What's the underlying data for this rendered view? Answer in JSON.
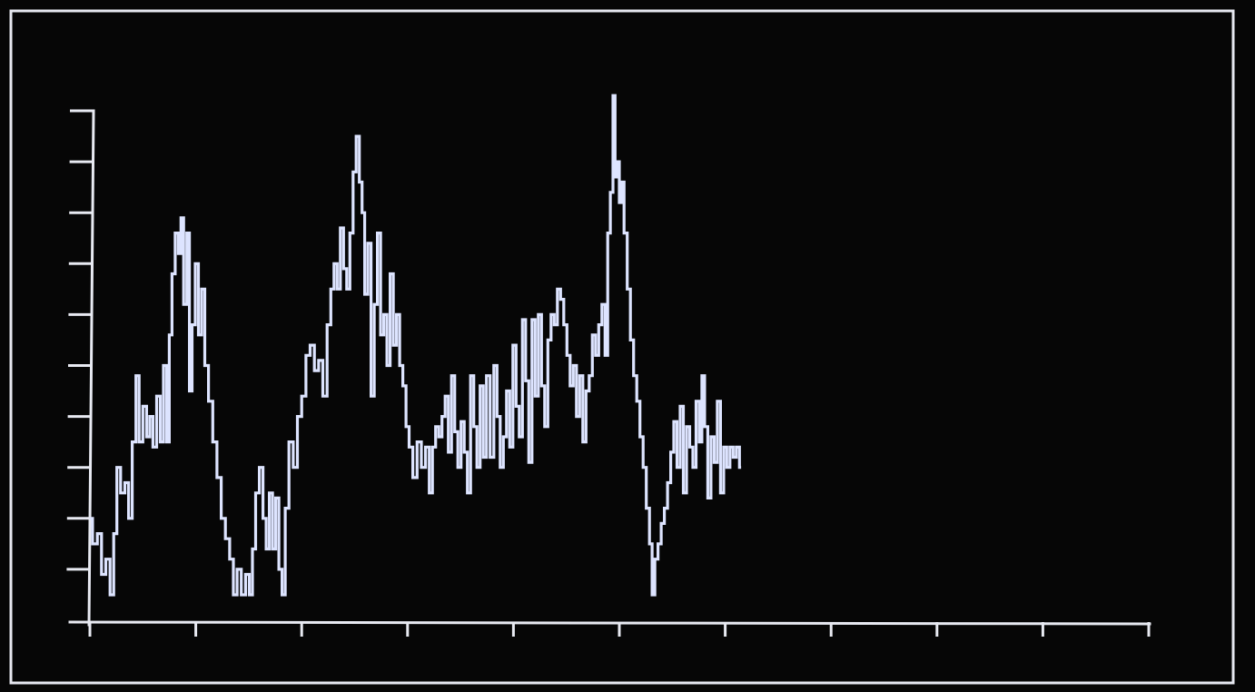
{
  "colors": {
    "background": "#060606",
    "frame": "#e6e8f0",
    "axis": "#e8eaf2",
    "trace": "#dde4ff"
  },
  "chart_data": {
    "type": "line",
    "title": "",
    "xlabel": "",
    "ylabel": "",
    "xlim": [
      0,
      10
    ],
    "ylim": [
      0,
      10
    ],
    "x_ticks": 10,
    "y_ticks": 10,
    "grid": false,
    "legend": "none",
    "series": [
      {
        "values": [
          [
            0.0,
            2.0
          ],
          [
            0.05,
            1.5
          ],
          [
            0.09,
            1.7
          ],
          [
            0.13,
            0.9
          ],
          [
            0.17,
            1.2
          ],
          [
            0.21,
            0.5
          ],
          [
            0.24,
            1.7
          ],
          [
            0.27,
            3.0
          ],
          [
            0.31,
            2.5
          ],
          [
            0.35,
            2.7
          ],
          [
            0.38,
            2.0
          ],
          [
            0.42,
            3.5
          ],
          [
            0.45,
            4.8
          ],
          [
            0.48,
            3.5
          ],
          [
            0.52,
            4.2
          ],
          [
            0.55,
            3.6
          ],
          [
            0.58,
            4.0
          ],
          [
            0.61,
            3.4
          ],
          [
            0.65,
            4.4
          ],
          [
            0.68,
            3.5
          ],
          [
            0.71,
            5.0
          ],
          [
            0.74,
            3.5
          ],
          [
            0.76,
            5.6
          ],
          [
            0.79,
            6.8
          ],
          [
            0.82,
            7.6
          ],
          [
            0.85,
            7.2
          ],
          [
            0.87,
            7.9
          ],
          [
            0.9,
            6.2
          ],
          [
            0.93,
            7.6
          ],
          [
            0.95,
            4.5
          ],
          [
            0.98,
            5.8
          ],
          [
            1.01,
            7.0
          ],
          [
            1.04,
            5.6
          ],
          [
            1.07,
            6.5
          ],
          [
            1.1,
            5.0
          ],
          [
            1.14,
            4.3
          ],
          [
            1.18,
            3.5
          ],
          [
            1.22,
            2.8
          ],
          [
            1.26,
            2.0
          ],
          [
            1.3,
            1.6
          ],
          [
            1.34,
            1.2
          ],
          [
            1.37,
            0.5
          ],
          [
            1.41,
            1.0
          ],
          [
            1.45,
            0.5
          ],
          [
            1.49,
            0.9
          ],
          [
            1.52,
            0.5
          ],
          [
            1.55,
            1.4
          ],
          [
            1.58,
            2.5
          ],
          [
            1.62,
            3.0
          ],
          [
            1.65,
            2.0
          ],
          [
            1.68,
            1.4
          ],
          [
            1.71,
            2.5
          ],
          [
            1.74,
            1.4
          ],
          [
            1.77,
            2.4
          ],
          [
            1.8,
            1.0
          ],
          [
            1.83,
            0.5
          ],
          [
            1.86,
            2.2
          ],
          [
            1.9,
            3.5
          ],
          [
            1.94,
            3.0
          ],
          [
            1.98,
            4.0
          ],
          [
            2.02,
            4.4
          ],
          [
            2.06,
            5.2
          ],
          [
            2.1,
            5.4
          ],
          [
            2.14,
            4.9
          ],
          [
            2.18,
            5.1
          ],
          [
            2.22,
            4.4
          ],
          [
            2.26,
            5.8
          ],
          [
            2.29,
            6.5
          ],
          [
            2.32,
            7.0
          ],
          [
            2.35,
            6.5
          ],
          [
            2.38,
            7.7
          ],
          [
            2.41,
            6.9
          ],
          [
            2.44,
            6.5
          ],
          [
            2.47,
            7.6
          ],
          [
            2.5,
            8.8
          ],
          [
            2.53,
            9.5
          ],
          [
            2.56,
            8.6
          ],
          [
            2.58,
            8.0
          ],
          [
            2.61,
            6.4
          ],
          [
            2.64,
            7.4
          ],
          [
            2.67,
            4.4
          ],
          [
            2.7,
            6.2
          ],
          [
            2.73,
            7.6
          ],
          [
            2.76,
            5.6
          ],
          [
            2.79,
            6.0
          ],
          [
            2.82,
            5.0
          ],
          [
            2.85,
            6.8
          ],
          [
            2.88,
            5.4
          ],
          [
            2.91,
            6.0
          ],
          [
            2.94,
            5.0
          ],
          [
            2.97,
            4.6
          ],
          [
            3.0,
            3.8
          ],
          [
            3.03,
            3.4
          ],
          [
            3.07,
            2.8
          ],
          [
            3.11,
            3.5
          ],
          [
            3.15,
            3.0
          ],
          [
            3.19,
            3.4
          ],
          [
            3.22,
            2.5
          ],
          [
            3.25,
            3.4
          ],
          [
            3.28,
            3.8
          ],
          [
            3.31,
            3.6
          ],
          [
            3.34,
            4.0
          ],
          [
            3.37,
            4.4
          ],
          [
            3.4,
            3.3
          ],
          [
            3.43,
            4.8
          ],
          [
            3.46,
            3.7
          ],
          [
            3.49,
            3.0
          ],
          [
            3.52,
            3.9
          ],
          [
            3.55,
            3.3
          ],
          [
            3.58,
            2.5
          ],
          [
            3.61,
            4.8
          ],
          [
            3.64,
            3.8
          ],
          [
            3.67,
            3.0
          ],
          [
            3.7,
            4.6
          ],
          [
            3.73,
            3.2
          ],
          [
            3.76,
            4.8
          ],
          [
            3.8,
            3.2
          ],
          [
            3.83,
            5.0
          ],
          [
            3.86,
            4.0
          ],
          [
            3.89,
            3.0
          ],
          [
            3.92,
            3.6
          ],
          [
            3.95,
            4.5
          ],
          [
            3.98,
            3.4
          ],
          [
            4.01,
            5.4
          ],
          [
            4.04,
            4.2
          ],
          [
            4.07,
            3.6
          ],
          [
            4.1,
            5.9
          ],
          [
            4.13,
            4.7
          ],
          [
            4.16,
            3.1
          ],
          [
            4.19,
            5.9
          ],
          [
            4.22,
            4.4
          ],
          [
            4.25,
            6.0
          ],
          [
            4.28,
            4.6
          ],
          [
            4.31,
            3.8
          ],
          [
            4.34,
            5.5
          ],
          [
            4.37,
            6.0
          ],
          [
            4.4,
            5.8
          ],
          [
            4.43,
            6.5
          ],
          [
            4.46,
            6.3
          ],
          [
            4.49,
            5.8
          ],
          [
            4.52,
            5.2
          ],
          [
            4.55,
            4.6
          ],
          [
            4.58,
            5.0
          ],
          [
            4.61,
            4.0
          ],
          [
            4.64,
            4.8
          ],
          [
            4.67,
            3.5
          ],
          [
            4.7,
            4.5
          ],
          [
            4.73,
            4.8
          ],
          [
            4.76,
            5.6
          ],
          [
            4.79,
            5.2
          ],
          [
            4.82,
            5.8
          ],
          [
            4.85,
            6.2
          ],
          [
            4.88,
            5.2
          ],
          [
            4.9,
            7.6
          ],
          [
            4.93,
            8.4
          ],
          [
            4.95,
            10.3
          ],
          [
            4.97,
            8.7
          ],
          [
            4.99,
            9.0
          ],
          [
            5.01,
            8.2
          ],
          [
            5.03,
            8.6
          ],
          [
            5.06,
            7.6
          ],
          [
            5.09,
            6.5
          ],
          [
            5.12,
            5.5
          ],
          [
            5.15,
            4.8
          ],
          [
            5.18,
            4.3
          ],
          [
            5.21,
            3.6
          ],
          [
            5.24,
            3.0
          ],
          [
            5.27,
            2.2
          ],
          [
            5.3,
            1.5
          ],
          [
            5.32,
            0.5
          ],
          [
            5.35,
            1.2
          ],
          [
            5.38,
            1.5
          ],
          [
            5.41,
            1.9
          ],
          [
            5.44,
            2.2
          ],
          [
            5.47,
            2.7
          ],
          [
            5.5,
            3.3
          ],
          [
            5.53,
            3.9
          ],
          [
            5.56,
            3.0
          ],
          [
            5.59,
            4.2
          ],
          [
            5.62,
            2.5
          ],
          [
            5.65,
            3.8
          ],
          [
            5.68,
            3.4
          ],
          [
            5.71,
            3.0
          ],
          [
            5.74,
            4.3
          ],
          [
            5.77,
            3.5
          ],
          [
            5.79,
            4.8
          ],
          [
            5.82,
            3.8
          ],
          [
            5.85,
            2.4
          ],
          [
            5.88,
            3.6
          ],
          [
            5.91,
            3.1
          ],
          [
            5.94,
            4.3
          ],
          [
            5.97,
            2.5
          ],
          [
            6.0,
            3.4
          ],
          [
            6.03,
            3.0
          ],
          [
            6.06,
            3.4
          ],
          [
            6.09,
            3.2
          ],
          [
            6.12,
            3.4
          ],
          [
            6.15,
            3.0
          ]
        ]
      }
    ]
  }
}
